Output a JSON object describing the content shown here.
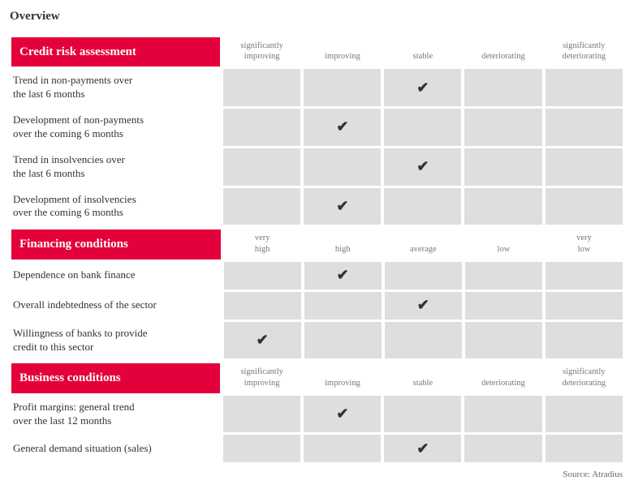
{
  "title": "Overview",
  "checkmark": "✔",
  "colors": {
    "section_header_bg": "#e4003a",
    "section_header_fg": "#ffffff",
    "cell_bg": "#dedede",
    "col_header_fg": "#777777",
    "text_fg": "#333333"
  },
  "sections": [
    {
      "header": "Credit risk assessment",
      "columns": [
        "significantly improving",
        "improving",
        "stable",
        "deteriorating",
        "significantly deteriorating"
      ],
      "rows": [
        {
          "label": "Trend in non-payments over the last 6 months",
          "checked": 2
        },
        {
          "label": "Development of non-payments over the coming 6 months",
          "checked": 1
        },
        {
          "label": "Trend in insolvencies over the last 6 months",
          "checked": 2
        },
        {
          "label": "Development of insolvencies over the coming 6 months",
          "checked": 1
        }
      ]
    },
    {
      "header": "Financing conditions",
      "columns": [
        "very high",
        "high",
        "average",
        "low",
        "very low"
      ],
      "rows": [
        {
          "label": "Dependence on bank finance",
          "checked": 1
        },
        {
          "label": "Overall indebtedness of the sector",
          "checked": 2
        },
        {
          "label": "Willingness of banks to provide credit to this sector",
          "checked": 0
        }
      ]
    },
    {
      "header": "Business conditions",
      "columns": [
        "significantly improving",
        "improving",
        "stable",
        "deteriorating",
        "significantly deteriorating"
      ],
      "rows": [
        {
          "label": "Profit margins: general trend over the last 12 months",
          "checked": 1
        },
        {
          "label": "General demand situation (sales)",
          "checked": 2
        }
      ]
    }
  ],
  "source": "Source: Atradius"
}
